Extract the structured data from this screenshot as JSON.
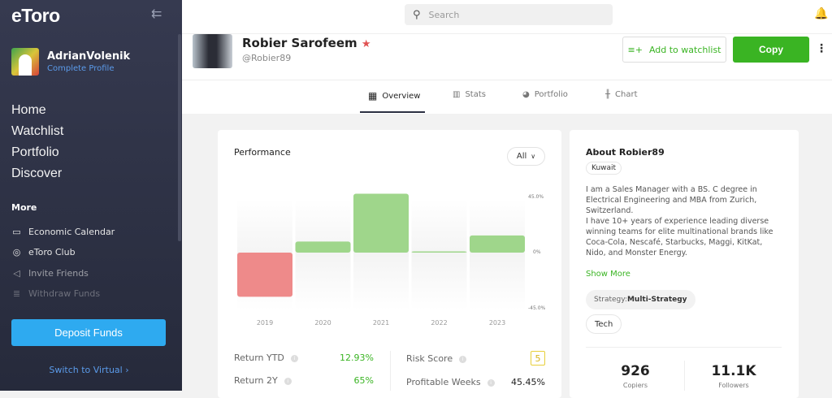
{
  "sidebar": {
    "logo": "eToro",
    "username": "AdrianVolenik",
    "complete_profile": "Complete Profile",
    "nav": [
      {
        "label": "Home"
      },
      {
        "label": "Watchlist"
      },
      {
        "label": "Portfolio"
      },
      {
        "label": "Discover"
      }
    ],
    "more_label": "More",
    "more_items": [
      {
        "label": "Economic Calendar",
        "icon": "calendar-icon"
      },
      {
        "label": "eToro Club",
        "icon": "club-icon"
      },
      {
        "label": "Invite Friends",
        "icon": "megaphone-icon"
      },
      {
        "label": "Withdraw Funds",
        "icon": "coins-icon"
      }
    ],
    "deposit_label": "Deposit Funds",
    "switch_label": "Switch to Virtual ›"
  },
  "header": {
    "search_placeholder": "Search"
  },
  "profile": {
    "name": "Robier Sarofeem",
    "handle": "@Robier89",
    "watchlist_label": "Add to watchlist",
    "copy_label": "Copy"
  },
  "tabs": [
    {
      "label": "Overview",
      "active": true
    },
    {
      "label": "Stats"
    },
    {
      "label": "Portfolio"
    },
    {
      "label": "Chart"
    }
  ],
  "performance": {
    "title": "Performance",
    "period": "All",
    "stats": [
      {
        "label": "Return YTD",
        "value": "12.93%"
      },
      {
        "label": "Return 2Y",
        "value": "65%"
      },
      {
        "label": "Risk Score",
        "value": "5"
      },
      {
        "label": "Profitable Weeks",
        "value": "45.45%"
      }
    ]
  },
  "chart_data": {
    "type": "bar",
    "categories": [
      "2019",
      "2020",
      "2021",
      "2022",
      "2023"
    ],
    "values": [
      -36,
      9,
      48,
      0.5,
      14
    ],
    "yticks": [
      "45.0%",
      "0%",
      "-45.0%"
    ],
    "ylim": [
      -45,
      45
    ],
    "colors": {
      "positive": "#9fd68b",
      "negative": "#ee8a8a"
    }
  },
  "about": {
    "title": "About Robier89",
    "country": "Kuwait",
    "bio1": "I am a Sales Manager with a BS. C degree in Electrical Engineering and MBA from Zurich, Switzerland.",
    "bio2": "I have 10+ years of experience leading diverse winning teams for elite multinational brands like Coca-Cola, Nescafé, Starbucks, Maggi, KitKat, Nido, and Monster Energy.",
    "show_more": "Show More",
    "strategy_label": "Strategy:",
    "strategy": "Multi-Strategy",
    "tag": "Tech",
    "copiers": "926",
    "copiers_label": "Copiers",
    "followers": "11.1K",
    "followers_label": "Followers"
  },
  "colors": {
    "accent": "#3ab423",
    "deposit": "#2eaaf0",
    "sidebar": "#2f3347"
  }
}
